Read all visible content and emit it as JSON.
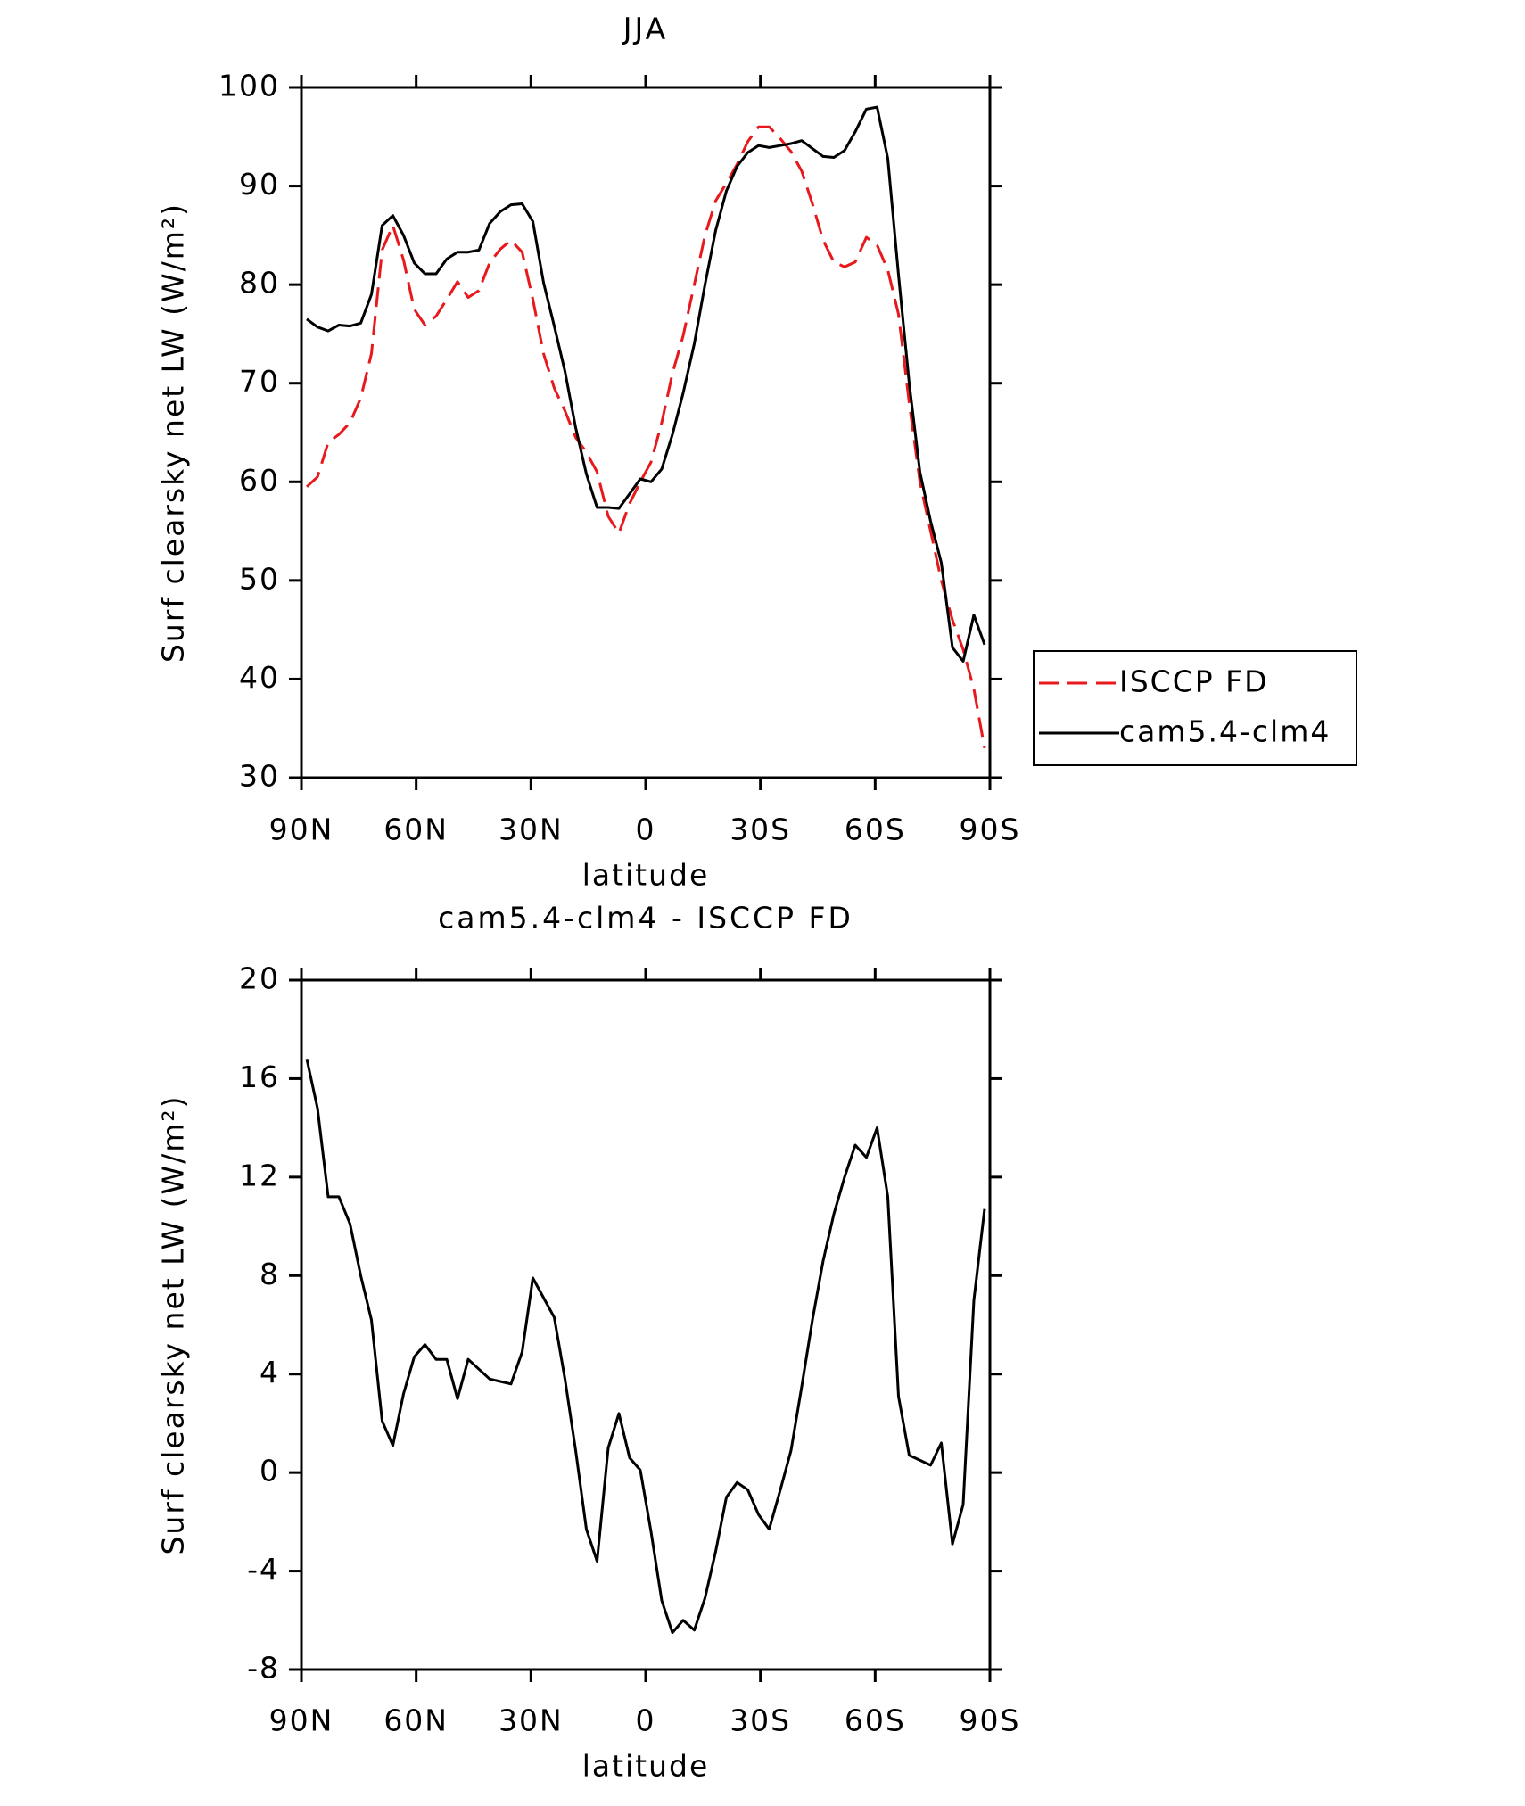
{
  "chart_data": [
    {
      "type": "line",
      "title": "JJA",
      "x_label": "latitude",
      "y_label": "Surf clearsky net LW (W/m²)",
      "x": [
        88.6,
        85.8,
        83.0,
        80.2,
        77.3,
        74.5,
        71.7,
        68.9,
        66.1,
        63.3,
        60.5,
        57.7,
        54.8,
        52.0,
        49.2,
        46.4,
        43.6,
        40.8,
        38.0,
        35.2,
        32.3,
        29.5,
        26.7,
        23.9,
        21.1,
        18.3,
        15.5,
        12.7,
        9.8,
        7.0,
        4.2,
        1.4,
        -1.4,
        -4.2,
        -7.0,
        -9.8,
        -12.7,
        -15.5,
        -18.3,
        -21.1,
        -23.9,
        -26.7,
        -29.5,
        -32.3,
        -35.2,
        -38.0,
        -40.8,
        -43.6,
        -46.4,
        -49.2,
        -52.0,
        -54.8,
        -57.7,
        -60.5,
        -63.3,
        -66.1,
        -68.9,
        -71.7,
        -74.5,
        -77.3,
        -80.2,
        -83.0,
        -85.8,
        -88.6
      ],
      "series": [
        {
          "name": "ISCCP FD",
          "color": "#e8191c",
          "dash": true,
          "values": [
            59.5,
            60.5,
            64,
            64.8,
            66,
            68.5,
            73,
            83.5,
            86,
            82.5,
            77.5,
            75.9,
            76.8,
            78.5,
            80.3,
            78.7,
            79.4,
            82.2,
            83.6,
            84.5,
            83.3,
            78.5,
            73,
            69.5,
            67.2,
            64.5,
            63,
            61,
            56.5,
            54.8,
            57.8,
            60,
            62,
            66,
            71,
            74.8,
            80,
            85,
            88.5,
            90.3,
            92.2,
            94.5,
            96,
            96,
            94.8,
            93.5,
            91.5,
            88.2,
            84.5,
            82.3,
            81.8,
            82.3,
            84.8,
            84,
            81.5,
            77,
            68,
            60,
            55,
            50,
            46,
            43,
            39,
            33
          ]
        },
        {
          "name": "cam5.4-clm4",
          "color": "#000000",
          "dash": false,
          "values": [
            76.5,
            75.7,
            75.3,
            75.9,
            75.8,
            76.1,
            79,
            86,
            87,
            85,
            82.2,
            81.1,
            81.1,
            82.6,
            83.3,
            83.3,
            83.5,
            86.2,
            87.4,
            88.1,
            88.2,
            86.4,
            80.2,
            75.8,
            71.2,
            65.5,
            60.8,
            57.4,
            57.4,
            57.3,
            58.8,
            60.3,
            60,
            61.3,
            64.8,
            69,
            74,
            80,
            85.5,
            89.5,
            92,
            93.4,
            94.1,
            93.9,
            94.1,
            94.3,
            94.6,
            93.8,
            93,
            92.9,
            93.6,
            95.5,
            97.8,
            98,
            92.8,
            81,
            70,
            61,
            56,
            51.8,
            43.2,
            41.8,
            46.5,
            43.5
          ]
        }
      ],
      "xlim": [
        90,
        -90
      ],
      "xticks": [
        {
          "value": 90,
          "label": "90N"
        },
        {
          "value": 60,
          "label": "60N"
        },
        {
          "value": 30,
          "label": "30N"
        },
        0,
        {
          "value": -30,
          "label": "30S"
        },
        {
          "value": -60,
          "label": "60S"
        },
        {
          "value": -90,
          "label": "90S"
        }
      ],
      "ylim": [
        30,
        100
      ],
      "yticks": [
        30,
        40,
        50,
        60,
        70,
        80,
        90,
        100
      ],
      "legend": "right"
    },
    {
      "type": "line",
      "title": "cam5.4-clm4 - ISCCP FD",
      "x_label": "latitude",
      "y_label": "Surf clearsky net LW (W/m²)",
      "x": [
        88.6,
        85.8,
        83.0,
        80.2,
        77.3,
        74.5,
        71.7,
        68.9,
        66.1,
        63.3,
        60.5,
        57.7,
        54.8,
        52.0,
        49.2,
        46.4,
        43.6,
        40.8,
        38.0,
        35.2,
        32.3,
        29.5,
        26.7,
        23.9,
        21.1,
        18.3,
        15.5,
        12.7,
        9.8,
        7.0,
        4.2,
        1.4,
        -1.4,
        -4.2,
        -7.0,
        -9.8,
        -12.7,
        -15.5,
        -18.3,
        -21.1,
        -23.9,
        -26.7,
        -29.5,
        -32.3,
        -35.2,
        -38.0,
        -40.8,
        -43.6,
        -46.4,
        -49.2,
        -52.0,
        -54.8,
        -57.7,
        -60.5,
        -63.3,
        -66.1,
        -68.9,
        -71.7,
        -74.5,
        -77.3,
        -80.2,
        -83.0,
        -85.8,
        -88.6
      ],
      "series": [
        {
          "color": "#000000",
          "dash": false,
          "values": [
            16.8,
            14.8,
            11.2,
            11.2,
            10.1,
            8,
            6.2,
            2.1,
            1.1,
            3.2,
            4.7,
            5.2,
            4.6,
            4.6,
            3,
            4.6,
            4.2,
            3.8,
            3.7,
            3.6,
            4.9,
            7.9,
            7.1,
            6.3,
            3.8,
            0.9,
            -2.3,
            -3.6,
            1,
            2.4,
            0.6,
            0.1,
            -2.4,
            -5.2,
            -6.5,
            -6,
            -6.4,
            -5.1,
            -3.2,
            -1,
            -0.4,
            -0.7,
            -1.7,
            -2.3,
            -0.7,
            0.9,
            3.5,
            6.2,
            8.6,
            10.5,
            12,
            13.3,
            12.8,
            14,
            11.2,
            3.1,
            0.7,
            0.5,
            0.3,
            1.2,
            -2.9,
            -1.3,
            7,
            10.7
          ]
        }
      ],
      "xlim": [
        90,
        -90
      ],
      "xticks": [
        {
          "value": 90,
          "label": "90N"
        },
        {
          "value": 60,
          "label": "60N"
        },
        {
          "value": 30,
          "label": "30N"
        },
        0,
        {
          "value": -30,
          "label": "30S"
        },
        {
          "value": -60,
          "label": "60S"
        },
        {
          "value": -90,
          "label": "90S"
        }
      ],
      "ylim": [
        -8,
        20
      ],
      "yticks": [
        -8,
        -4,
        0,
        4,
        8,
        12,
        16,
        20
      ]
    }
  ]
}
